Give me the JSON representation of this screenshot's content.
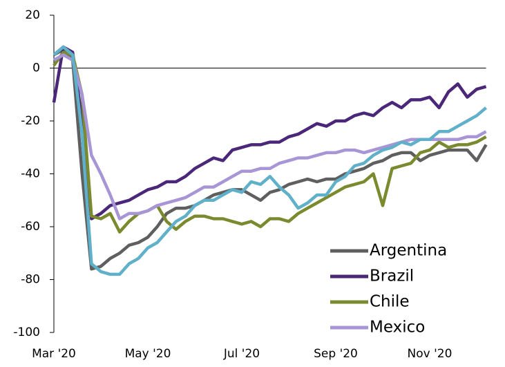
{
  "chart_data": {
    "type": "line",
    "categories": [
      "Mar '20",
      null,
      null,
      null,
      null,
      null,
      null,
      null,
      null,
      null,
      "May '20",
      null,
      null,
      null,
      null,
      null,
      null,
      null,
      null,
      null,
      "Jul '20",
      null,
      null,
      null,
      null,
      null,
      null,
      null,
      null,
      null,
      "Sep '20",
      null,
      null,
      null,
      null,
      null,
      null,
      null,
      null,
      null,
      "Nov '20",
      null,
      null,
      null,
      null,
      null,
      null
    ],
    "ylim": [
      -100,
      20
    ],
    "yticks": [
      -100,
      -80,
      -60,
      -40,
      -20,
      0,
      20
    ],
    "series": [
      {
        "name": "Argentina",
        "color": "#5f5f5f",
        "values": [
          5,
          7,
          3,
          -40,
          -76,
          -75,
          -72,
          -70,
          -67,
          -66,
          -64,
          -60,
          -55,
          -53,
          -53,
          -52,
          -50,
          -48,
          -47,
          -46,
          -46,
          -48,
          -50,
          -47,
          -46,
          -44,
          -43,
          -42,
          -43,
          -42,
          -42,
          -40,
          -39,
          -38,
          -36,
          -35,
          -33,
          -32,
          -32,
          -35,
          -33,
          -32,
          -31,
          -31,
          -31,
          -35,
          -29
        ]
      },
      {
        "name": "Brazil",
        "color": "#4b2779",
        "values": [
          -13,
          8,
          6,
          -20,
          -57,
          -55,
          -52,
          -51,
          -50,
          -48,
          -46,
          -45,
          -43,
          -43,
          -41,
          -38,
          -36,
          -34,
          -35,
          -31,
          -30,
          -29,
          -29,
          -28,
          -28,
          -26,
          -25,
          -23,
          -21,
          -22,
          -20,
          -20,
          -18,
          -17,
          -18,
          -15,
          -13,
          -15,
          -12,
          -12,
          -11,
          -15,
          -9,
          -6,
          -11,
          -8,
          -7
        ]
      },
      {
        "name": "Chile",
        "color": "#7a8a2e",
        "values": [
          1,
          6,
          5,
          -10,
          -56,
          -57,
          -55,
          -62,
          -58,
          -55,
          -54,
          -52,
          -58,
          -61,
          -58,
          -56,
          -56,
          -57,
          -57,
          -58,
          -59,
          -58,
          -60,
          -57,
          -57,
          -58,
          -55,
          -53,
          -51,
          -49,
          -47,
          -45,
          -44,
          -43,
          -40,
          -52,
          -38,
          -37,
          -36,
          -32,
          -31,
          -28,
          -30,
          -29,
          -29,
          -28,
          -26
        ]
      },
      {
        "name": "Mexico",
        "color": "#a895d6",
        "values": [
          3,
          5,
          3,
          -10,
          -33,
          -40,
          -48,
          -57,
          -55,
          -55,
          -54,
          -52,
          -51,
          -50,
          -49,
          -47,
          -45,
          -45,
          -43,
          -41,
          -39,
          -39,
          -38,
          -38,
          -36,
          -35,
          -34,
          -34,
          -33,
          -32,
          -32,
          -31,
          -31,
          -32,
          -31,
          -30,
          -29,
          -28,
          -27,
          -27,
          -27,
          -27,
          -27,
          -27,
          -26,
          -26,
          -24
        ]
      },
      {
        "color": "#5fb0c8",
        "values": [
          5,
          8,
          5,
          -25,
          -74,
          -77,
          -78,
          -78,
          -74,
          -72,
          -68,
          -66,
          -62,
          -58,
          -56,
          -52,
          -50,
          -50,
          -48,
          -46,
          -47,
          -43,
          -44,
          -41,
          -45,
          -48,
          -53,
          -51,
          -48,
          -48,
          -43,
          -41,
          -37,
          -36,
          -33,
          -31,
          -30,
          -28,
          -29,
          -27,
          -27,
          -24,
          -24,
          -22,
          -20,
          -18,
          -15
        ]
      }
    ]
  }
}
